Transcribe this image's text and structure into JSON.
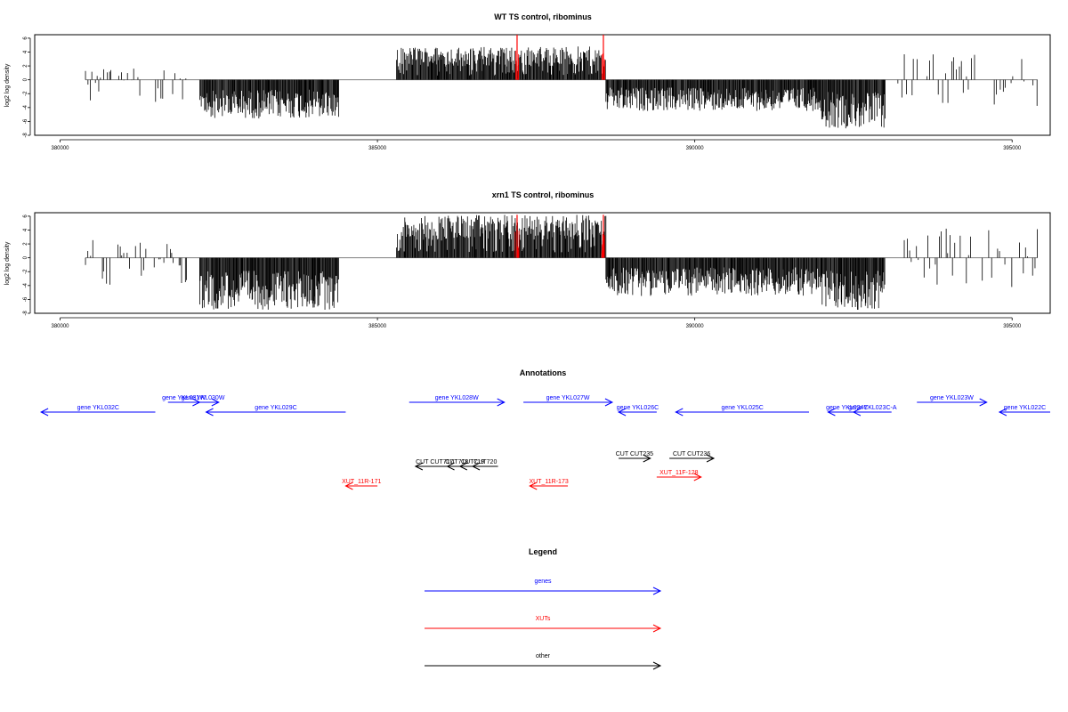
{
  "chart_data": [
    {
      "type": "bar",
      "title": "WT TS control, ribominus",
      "ylabel": "log2 log density",
      "xlabel": "",
      "xlim": [
        379600,
        395600
      ],
      "ylim": [
        -8,
        6.5
      ],
      "x_ticks": [
        380000,
        385000,
        390000,
        395000
      ],
      "y_ticks": [
        -8,
        -6,
        -4,
        -2,
        0,
        2,
        4,
        6
      ],
      "grid": false,
      "series": [
        {
          "color": "#000000",
          "description_segments": [
            {
              "from": 380400,
              "to": 382000,
              "sign": "mixed",
              "max": 2,
              "min": -4
            },
            {
              "from": 382200,
              "to": 384400,
              "sign": "neg",
              "min": -5.6
            },
            {
              "from": 385300,
              "to": 388600,
              "sign": "pos",
              "max": 4.8
            },
            {
              "from": 388600,
              "to": 392000,
              "sign": "neg",
              "min": -4.5
            },
            {
              "from": 392000,
              "to": 393000,
              "sign": "neg",
              "min": -7
            },
            {
              "from": 393200,
              "to": 395400,
              "sign": "mixed",
              "max": 3.8,
              "min": -4.2
            }
          ]
        },
        {
          "color": "#ff0000",
          "spikes": [
            {
              "x": 387200,
              "y": 6.5
            },
            {
              "x": 388560,
              "y": 6.5
            }
          ]
        }
      ]
    },
    {
      "type": "bar",
      "title": "xrn1 TS control, ribominus",
      "ylabel": "log2 log density",
      "xlabel": "",
      "xlim": [
        379600,
        395600
      ],
      "ylim": [
        -8,
        6.5
      ],
      "x_ticks": [
        380000,
        385000,
        390000,
        395000
      ],
      "y_ticks": [
        -8,
        -6,
        -4,
        -2,
        0,
        2,
        4,
        6
      ],
      "grid": false,
      "series": [
        {
          "color": "#000000",
          "description_segments": [
            {
              "from": 380400,
              "to": 382000,
              "sign": "mixed",
              "max": 2.6,
              "min": -4
            },
            {
              "from": 382200,
              "to": 384400,
              "sign": "neg",
              "min": -7.5
            },
            {
              "from": 385300,
              "to": 388600,
              "sign": "pos",
              "max": 6.2
            },
            {
              "from": 388600,
              "to": 392000,
              "sign": "neg",
              "min": -5.5
            },
            {
              "from": 392000,
              "to": 393000,
              "sign": "neg",
              "min": -7.5
            },
            {
              "from": 393200,
              "to": 395400,
              "sign": "mixed",
              "max": 4.2,
              "min": -5
            }
          ]
        },
        {
          "color": "#ff0000",
          "spikes": [
            {
              "x": 387200,
              "y": 6.2
            },
            {
              "x": 388560,
              "y": 6.2
            }
          ]
        }
      ]
    }
  ],
  "annotations": {
    "title": "Annotations",
    "genes": [
      {
        "label": "gene YKL032C",
        "start": 379700,
        "end": 381500,
        "dir": "left",
        "row": 2
      },
      {
        "label": "gene YKL031W",
        "start": 381700,
        "end": 382200,
        "dir": "right",
        "row": 1
      },
      {
        "label": "gene YKL030W",
        "start": 382000,
        "end": 382500,
        "dir": "right",
        "row": 1
      },
      {
        "label": "gene YKL029C",
        "start": 382300,
        "end": 384500,
        "dir": "left",
        "row": 2
      },
      {
        "label": "gene YKL028W",
        "start": 385500,
        "end": 387000,
        "dir": "right",
        "row": 1
      },
      {
        "label": "gene YKL027W",
        "start": 387300,
        "end": 388700,
        "dir": "right",
        "row": 1
      },
      {
        "label": "gene YKL026C",
        "start": 388800,
        "end": 389400,
        "dir": "left",
        "row": 2
      },
      {
        "label": "gene YKL025C",
        "start": 389700,
        "end": 391800,
        "dir": "left",
        "row": 2
      },
      {
        "label": "gene YKL024C",
        "start": 392100,
        "end": 392700,
        "dir": "left",
        "row": 2
      },
      {
        "label": "gene YKL023C-A",
        "start": 392500,
        "end": 393100,
        "dir": "left",
        "row": 2
      },
      {
        "label": "gene YKL023W",
        "start": 393500,
        "end": 394600,
        "dir": "right",
        "row": 1
      },
      {
        "label": "gene YKL022C",
        "start": 394800,
        "end": 396200,
        "dir": "left",
        "row": 2
      }
    ],
    "other": [
      {
        "label": "CUT CUT717",
        "start": 385600,
        "end": 386200,
        "dir": "left",
        "row": 1
      },
      {
        "label": "CUT718",
        "start": 386100,
        "end": 386400,
        "dir": "left",
        "row": 1
      },
      {
        "label": "CUT719",
        "start": 386300,
        "end": 386700,
        "dir": "left",
        "row": 1
      },
      {
        "label": "CUT720",
        "start": 386500,
        "end": 386900,
        "dir": "left",
        "row": 1
      },
      {
        "label": "CUT CUT235",
        "start": 388800,
        "end": 389300,
        "dir": "right",
        "row": 0
      },
      {
        "label": "CUT CUT236",
        "start": 389600,
        "end": 390300,
        "dir": "right",
        "row": 0
      }
    ],
    "xuts": [
      {
        "label": "XUT_11R-171",
        "start": 384500,
        "end": 385000,
        "dir": "left",
        "row": 2
      },
      {
        "label": "XUT_11R-173",
        "start": 387400,
        "end": 388000,
        "dir": "left",
        "row": 2
      },
      {
        "label": "XUT_11F-128",
        "start": 389400,
        "end": 390100,
        "dir": "right",
        "row": 1
      }
    ]
  },
  "legend": {
    "title": "Legend",
    "items": [
      {
        "label": "genes",
        "color": "#0000ff"
      },
      {
        "label": "XUTs",
        "color": "#ff0000"
      },
      {
        "label": "other",
        "color": "#000000"
      }
    ]
  },
  "colors": {
    "genes": "#0000ff",
    "xuts": "#ff0000",
    "other": "#000000",
    "axis": "#000000",
    "zero_line": "#808080"
  }
}
